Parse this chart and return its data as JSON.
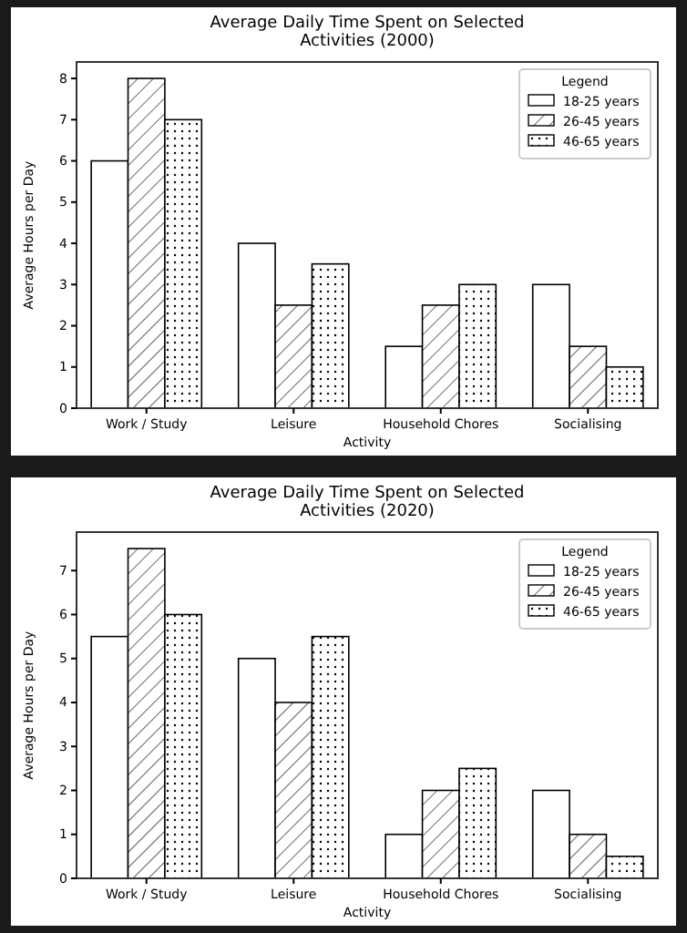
{
  "chart_data": [
    {
      "type": "bar",
      "title": "Average Daily Time Spent on Selected\nActivities (2000)",
      "xlabel": "Activity",
      "ylabel": "Average Hours per Day",
      "legend_title": "Legend",
      "legend": "top right",
      "categories": [
        "Work / Study",
        "Leisure",
        "Household Chores",
        "Socialising"
      ],
      "series": [
        {
          "name": "18-25 years",
          "color": "#ffffff",
          "values": [
            6,
            4,
            1.5,
            3
          ]
        },
        {
          "name": "26-45 years",
          "color": "#ffffff",
          "values": [
            8,
            2.5,
            2.5,
            1.5
          ]
        },
        {
          "name": "46-65 years",
          "color": "#ffffff",
          "values": [
            7,
            3.5,
            3,
            1
          ]
        }
      ],
      "ylim": [
        0,
        8.4
      ],
      "yticks": [
        0,
        1,
        2,
        3,
        4,
        5,
        6,
        7,
        8
      ]
    },
    {
      "type": "bar",
      "title": "Average Daily Time Spent on Selected\nActivities (2020)",
      "xlabel": "Activity",
      "ylabel": "Average Hours per Day",
      "legend_title": "Legend",
      "legend": "top right",
      "categories": [
        "Work / Study",
        "Leisure",
        "Household Chores",
        "Socialising"
      ],
      "series": [
        {
          "name": "18-25 years",
          "color": "#ffffff",
          "values": [
            5.5,
            5,
            1,
            2
          ]
        },
        {
          "name": "26-45 years",
          "color": "#ffffff",
          "values": [
            7.5,
            4,
            2,
            1
          ]
        },
        {
          "name": "46-65 years",
          "color": "#ffffff",
          "values": [
            6,
            5.5,
            2.5,
            0.5
          ]
        }
      ],
      "ylim": [
        0,
        7.875
      ],
      "yticks": [
        0,
        1,
        2,
        3,
        4,
        5,
        6,
        7
      ]
    }
  ]
}
